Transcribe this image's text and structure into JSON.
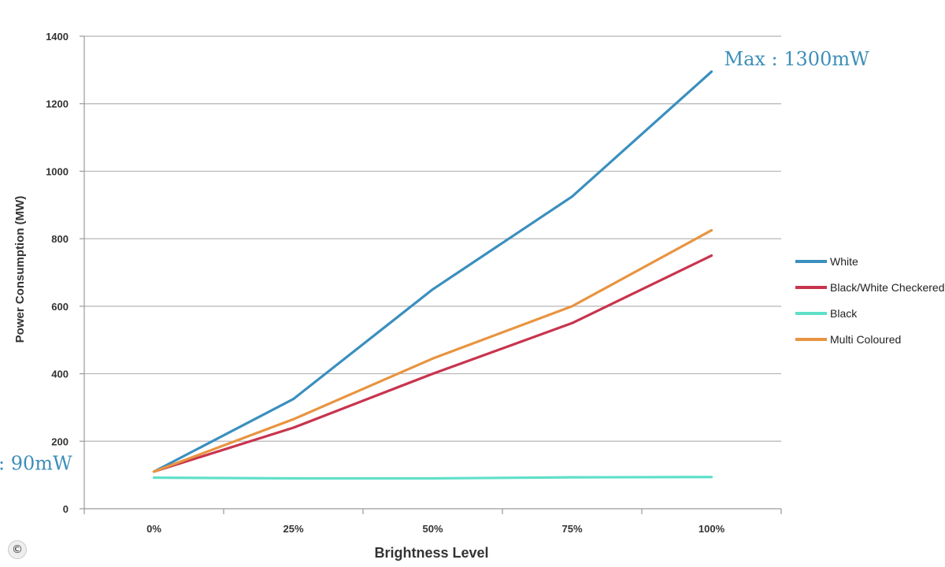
{
  "chart_data": {
    "type": "line",
    "xlabel": "Brightness Level",
    "ylabel": "Power Consumption (MW)",
    "categories": [
      "0%",
      "25%",
      "50%",
      "75%",
      "100%"
    ],
    "ylim": [
      0,
      1400
    ],
    "yticks": [
      0,
      200,
      400,
      600,
      800,
      1000,
      1200,
      1400
    ],
    "grid": true,
    "legend_position": "right",
    "series": [
      {
        "name": "White",
        "color": "#3a8fbf",
        "values": [
          110,
          325,
          650,
          925,
          1295
        ]
      },
      {
        "name": "Black/White Checkered",
        "color": "#c8344e",
        "values": [
          110,
          240,
          400,
          550,
          750
        ]
      },
      {
        "name": "Black",
        "color": "#5fe0c8",
        "values": [
          92,
          90,
          90,
          93,
          94
        ]
      },
      {
        "name": "Multi Coloured",
        "color": "#e89440",
        "values": [
          110,
          265,
          445,
          600,
          825
        ]
      }
    ],
    "annotations": [
      {
        "text": "Max : 1300mW",
        "color": "#3d8fb8",
        "near": "White at 100%"
      },
      {
        "text": ": 90mW",
        "color": "#3d8fb8",
        "near": "Black at 0%"
      }
    ]
  },
  "watermark": "©"
}
